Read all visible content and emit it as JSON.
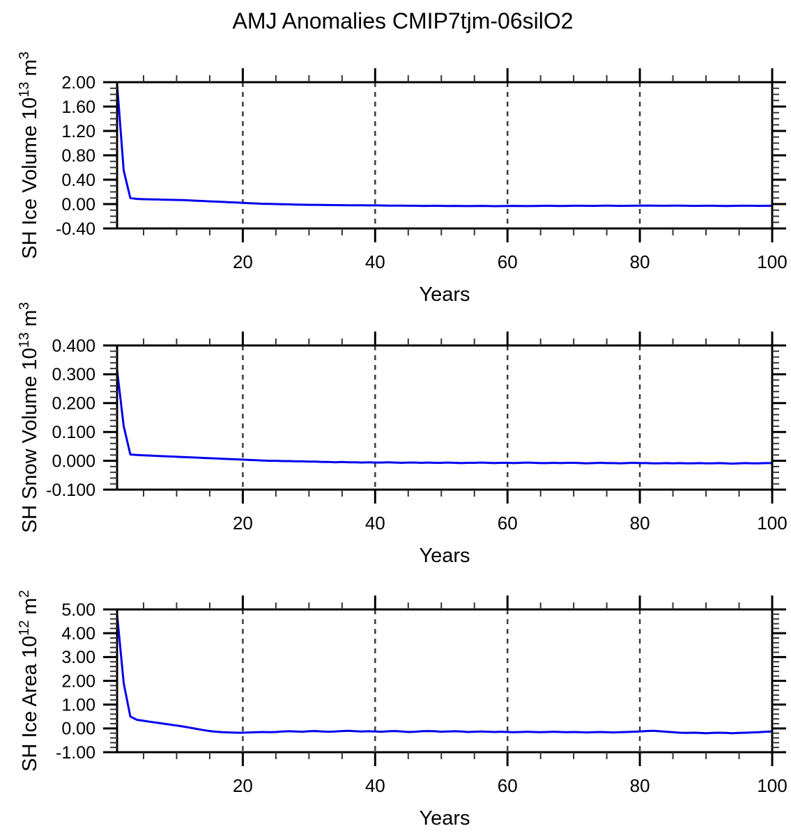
{
  "title": "AMJ Anomalies CMIP7tjm-06silO2",
  "colors": {
    "line": "#0000ee",
    "grid": "#3c3c3c",
    "axis": "#000000",
    "minor_tick": "#333333"
  },
  "chart_data": [
    {
      "type": "line",
      "name": "sh-ice-volume",
      "ylabel": "SH Ice Volume 10^13 m^3",
      "ylabel_parts": [
        {
          "t": "SH Ice Volume 10"
        },
        {
          "t": "13",
          "sup": true
        },
        {
          "t": " m"
        },
        {
          "t": "3",
          "sup": true
        }
      ],
      "xlabel": "Years",
      "xlim": [
        1,
        100
      ],
      "ylim": [
        -0.4,
        2.0
      ],
      "yticks": [
        2.0,
        1.6,
        1.2,
        0.8,
        0.4,
        0.0,
        -0.4
      ],
      "ytick_labels": [
        "2.00",
        "1.60",
        "1.20",
        "0.80",
        "0.40",
        "0.00",
        "-0.40"
      ],
      "y_minor_step": 0.1,
      "xticks": [
        20,
        40,
        60,
        80,
        100
      ],
      "xtick_labels": [
        "20",
        "40",
        "60",
        "80",
        "100"
      ],
      "x_minor_step": 5,
      "gridlines_x": [
        20,
        40,
        60,
        80
      ],
      "grid": "dashed-vertical",
      "legend": "none",
      "x_start": 1,
      "x_step": 1,
      "values": [
        1.97,
        0.55,
        0.1,
        0.085,
        0.08,
        0.078,
        0.075,
        0.072,
        0.07,
        0.068,
        0.065,
        0.06,
        0.055,
        0.05,
        0.045,
        0.04,
        0.035,
        0.03,
        0.025,
        0.02,
        0.015,
        0.01,
        0.005,
        0.002,
        0.0,
        -0.003,
        -0.005,
        -0.008,
        -0.01,
        -0.012,
        -0.013,
        -0.015,
        -0.016,
        -0.017,
        -0.018,
        -0.019,
        -0.02,
        -0.021,
        -0.022,
        -0.022,
        -0.023,
        -0.025,
        -0.026,
        -0.025,
        -0.027,
        -0.028,
        -0.03,
        -0.03,
        -0.028,
        -0.03,
        -0.032,
        -0.03,
        -0.031,
        -0.033,
        -0.032,
        -0.03,
        -0.032,
        -0.034,
        -0.033,
        -0.031,
        -0.03,
        -0.032,
        -0.033,
        -0.031,
        -0.03,
        -0.028,
        -0.03,
        -0.032,
        -0.03,
        -0.028,
        -0.027,
        -0.029,
        -0.03,
        -0.028,
        -0.026,
        -0.028,
        -0.03,
        -0.029,
        -0.027,
        -0.025,
        -0.024,
        -0.026,
        -0.028,
        -0.027,
        -0.025,
        -0.026,
        -0.028,
        -0.03,
        -0.029,
        -0.027,
        -0.028,
        -0.03,
        -0.031,
        -0.03,
        -0.028,
        -0.027,
        -0.028,
        -0.03,
        -0.029,
        -0.028
      ]
    },
    {
      "type": "line",
      "name": "sh-snow-volume",
      "ylabel": "SH Snow Volume 10^13 m^3",
      "ylabel_parts": [
        {
          "t": "SH Snow Volume 10"
        },
        {
          "t": "13",
          "sup": true
        },
        {
          "t": " m"
        },
        {
          "t": "3",
          "sup": true
        }
      ],
      "xlabel": "Years",
      "xlim": [
        1,
        100
      ],
      "ylim": [
        -0.1,
        0.4
      ],
      "yticks": [
        0.4,
        0.3,
        0.2,
        0.1,
        0.0,
        -0.1
      ],
      "ytick_labels": [
        "0.400",
        "0.300",
        "0.200",
        "0.100",
        "0.000",
        "-0.100"
      ],
      "y_minor_step": 0.02,
      "xticks": [
        20,
        40,
        60,
        80,
        100
      ],
      "xtick_labels": [
        "20",
        "40",
        "60",
        "80",
        "100"
      ],
      "x_minor_step": 5,
      "gridlines_x": [
        20,
        40,
        60,
        80
      ],
      "grid": "dashed-vertical",
      "legend": "none",
      "x_start": 1,
      "x_step": 1,
      "values": [
        0.315,
        0.12,
        0.022,
        0.02,
        0.019,
        0.018,
        0.017,
        0.016,
        0.015,
        0.014,
        0.013,
        0.012,
        0.011,
        0.01,
        0.009,
        0.008,
        0.007,
        0.006,
        0.005,
        0.004,
        0.003,
        0.002,
        0.001,
        0.0,
        0.0,
        -0.001,
        -0.001,
        -0.002,
        -0.002,
        -0.003,
        -0.003,
        -0.004,
        -0.004,
        -0.005,
        -0.004,
        -0.005,
        -0.005,
        -0.006,
        -0.005,
        -0.006,
        -0.006,
        -0.005,
        -0.006,
        -0.007,
        -0.006,
        -0.006,
        -0.007,
        -0.006,
        -0.007,
        -0.007,
        -0.006,
        -0.007,
        -0.008,
        -0.007,
        -0.007,
        -0.006,
        -0.007,
        -0.008,
        -0.007,
        -0.007,
        -0.008,
        -0.007,
        -0.006,
        -0.007,
        -0.008,
        -0.008,
        -0.007,
        -0.008,
        -0.007,
        -0.007,
        -0.008,
        -0.009,
        -0.008,
        -0.007,
        -0.008,
        -0.008,
        -0.009,
        -0.008,
        -0.007,
        -0.008,
        -0.008,
        -0.009,
        -0.009,
        -0.008,
        -0.009,
        -0.008,
        -0.009,
        -0.009,
        -0.008,
        -0.009,
        -0.009,
        -0.008,
        -0.009,
        -0.01,
        -0.009,
        -0.008,
        -0.009,
        -0.009,
        -0.008,
        -0.008
      ]
    },
    {
      "type": "line",
      "name": "sh-ice-area",
      "ylabel": "SH Ice Area 10^12 m^2",
      "ylabel_parts": [
        {
          "t": "SH Ice Area 10"
        },
        {
          "t": "12",
          "sup": true
        },
        {
          "t": " m"
        },
        {
          "t": "2",
          "sup": true
        }
      ],
      "xlabel": "Years",
      "xlim": [
        1,
        100
      ],
      "ylim": [
        -1.0,
        5.0
      ],
      "yticks": [
        5.0,
        4.0,
        3.0,
        2.0,
        1.0,
        0.0,
        -1.0
      ],
      "ytick_labels": [
        "5.00",
        "4.00",
        "3.00",
        "2.00",
        "1.00",
        "0.00",
        "-1.00"
      ],
      "y_minor_step": 0.2,
      "xticks": [
        20,
        40,
        60,
        80,
        100
      ],
      "xtick_labels": [
        "20",
        "40",
        "60",
        "80",
        "100"
      ],
      "x_minor_step": 5,
      "gridlines_x": [
        20,
        40,
        60,
        80
      ],
      "grid": "dashed-vertical",
      "legend": "none",
      "x_start": 1,
      "x_step": 1,
      "values": [
        4.8,
        1.9,
        0.5,
        0.36,
        0.32,
        0.28,
        0.24,
        0.2,
        0.16,
        0.12,
        0.08,
        0.03,
        -0.02,
        -0.07,
        -0.11,
        -0.14,
        -0.16,
        -0.17,
        -0.18,
        -0.18,
        -0.17,
        -0.16,
        -0.15,
        -0.16,
        -0.15,
        -0.13,
        -0.12,
        -0.13,
        -0.14,
        -0.12,
        -0.11,
        -0.13,
        -0.14,
        -0.13,
        -0.11,
        -0.1,
        -0.12,
        -0.13,
        -0.12,
        -0.13,
        -0.14,
        -0.12,
        -0.11,
        -0.13,
        -0.15,
        -0.14,
        -0.12,
        -0.11,
        -0.12,
        -0.14,
        -0.13,
        -0.12,
        -0.13,
        -0.15,
        -0.14,
        -0.13,
        -0.14,
        -0.15,
        -0.14,
        -0.15,
        -0.16,
        -0.15,
        -0.14,
        -0.15,
        -0.16,
        -0.15,
        -0.14,
        -0.15,
        -0.16,
        -0.15,
        -0.16,
        -0.17,
        -0.16,
        -0.15,
        -0.16,
        -0.17,
        -0.16,
        -0.15,
        -0.14,
        -0.13,
        -0.11,
        -0.1,
        -0.12,
        -0.14,
        -0.16,
        -0.18,
        -0.19,
        -0.18,
        -0.19,
        -0.2,
        -0.19,
        -0.18,
        -0.19,
        -0.2,
        -0.19,
        -0.18,
        -0.17,
        -0.16,
        -0.14,
        -0.13
      ]
    }
  ]
}
